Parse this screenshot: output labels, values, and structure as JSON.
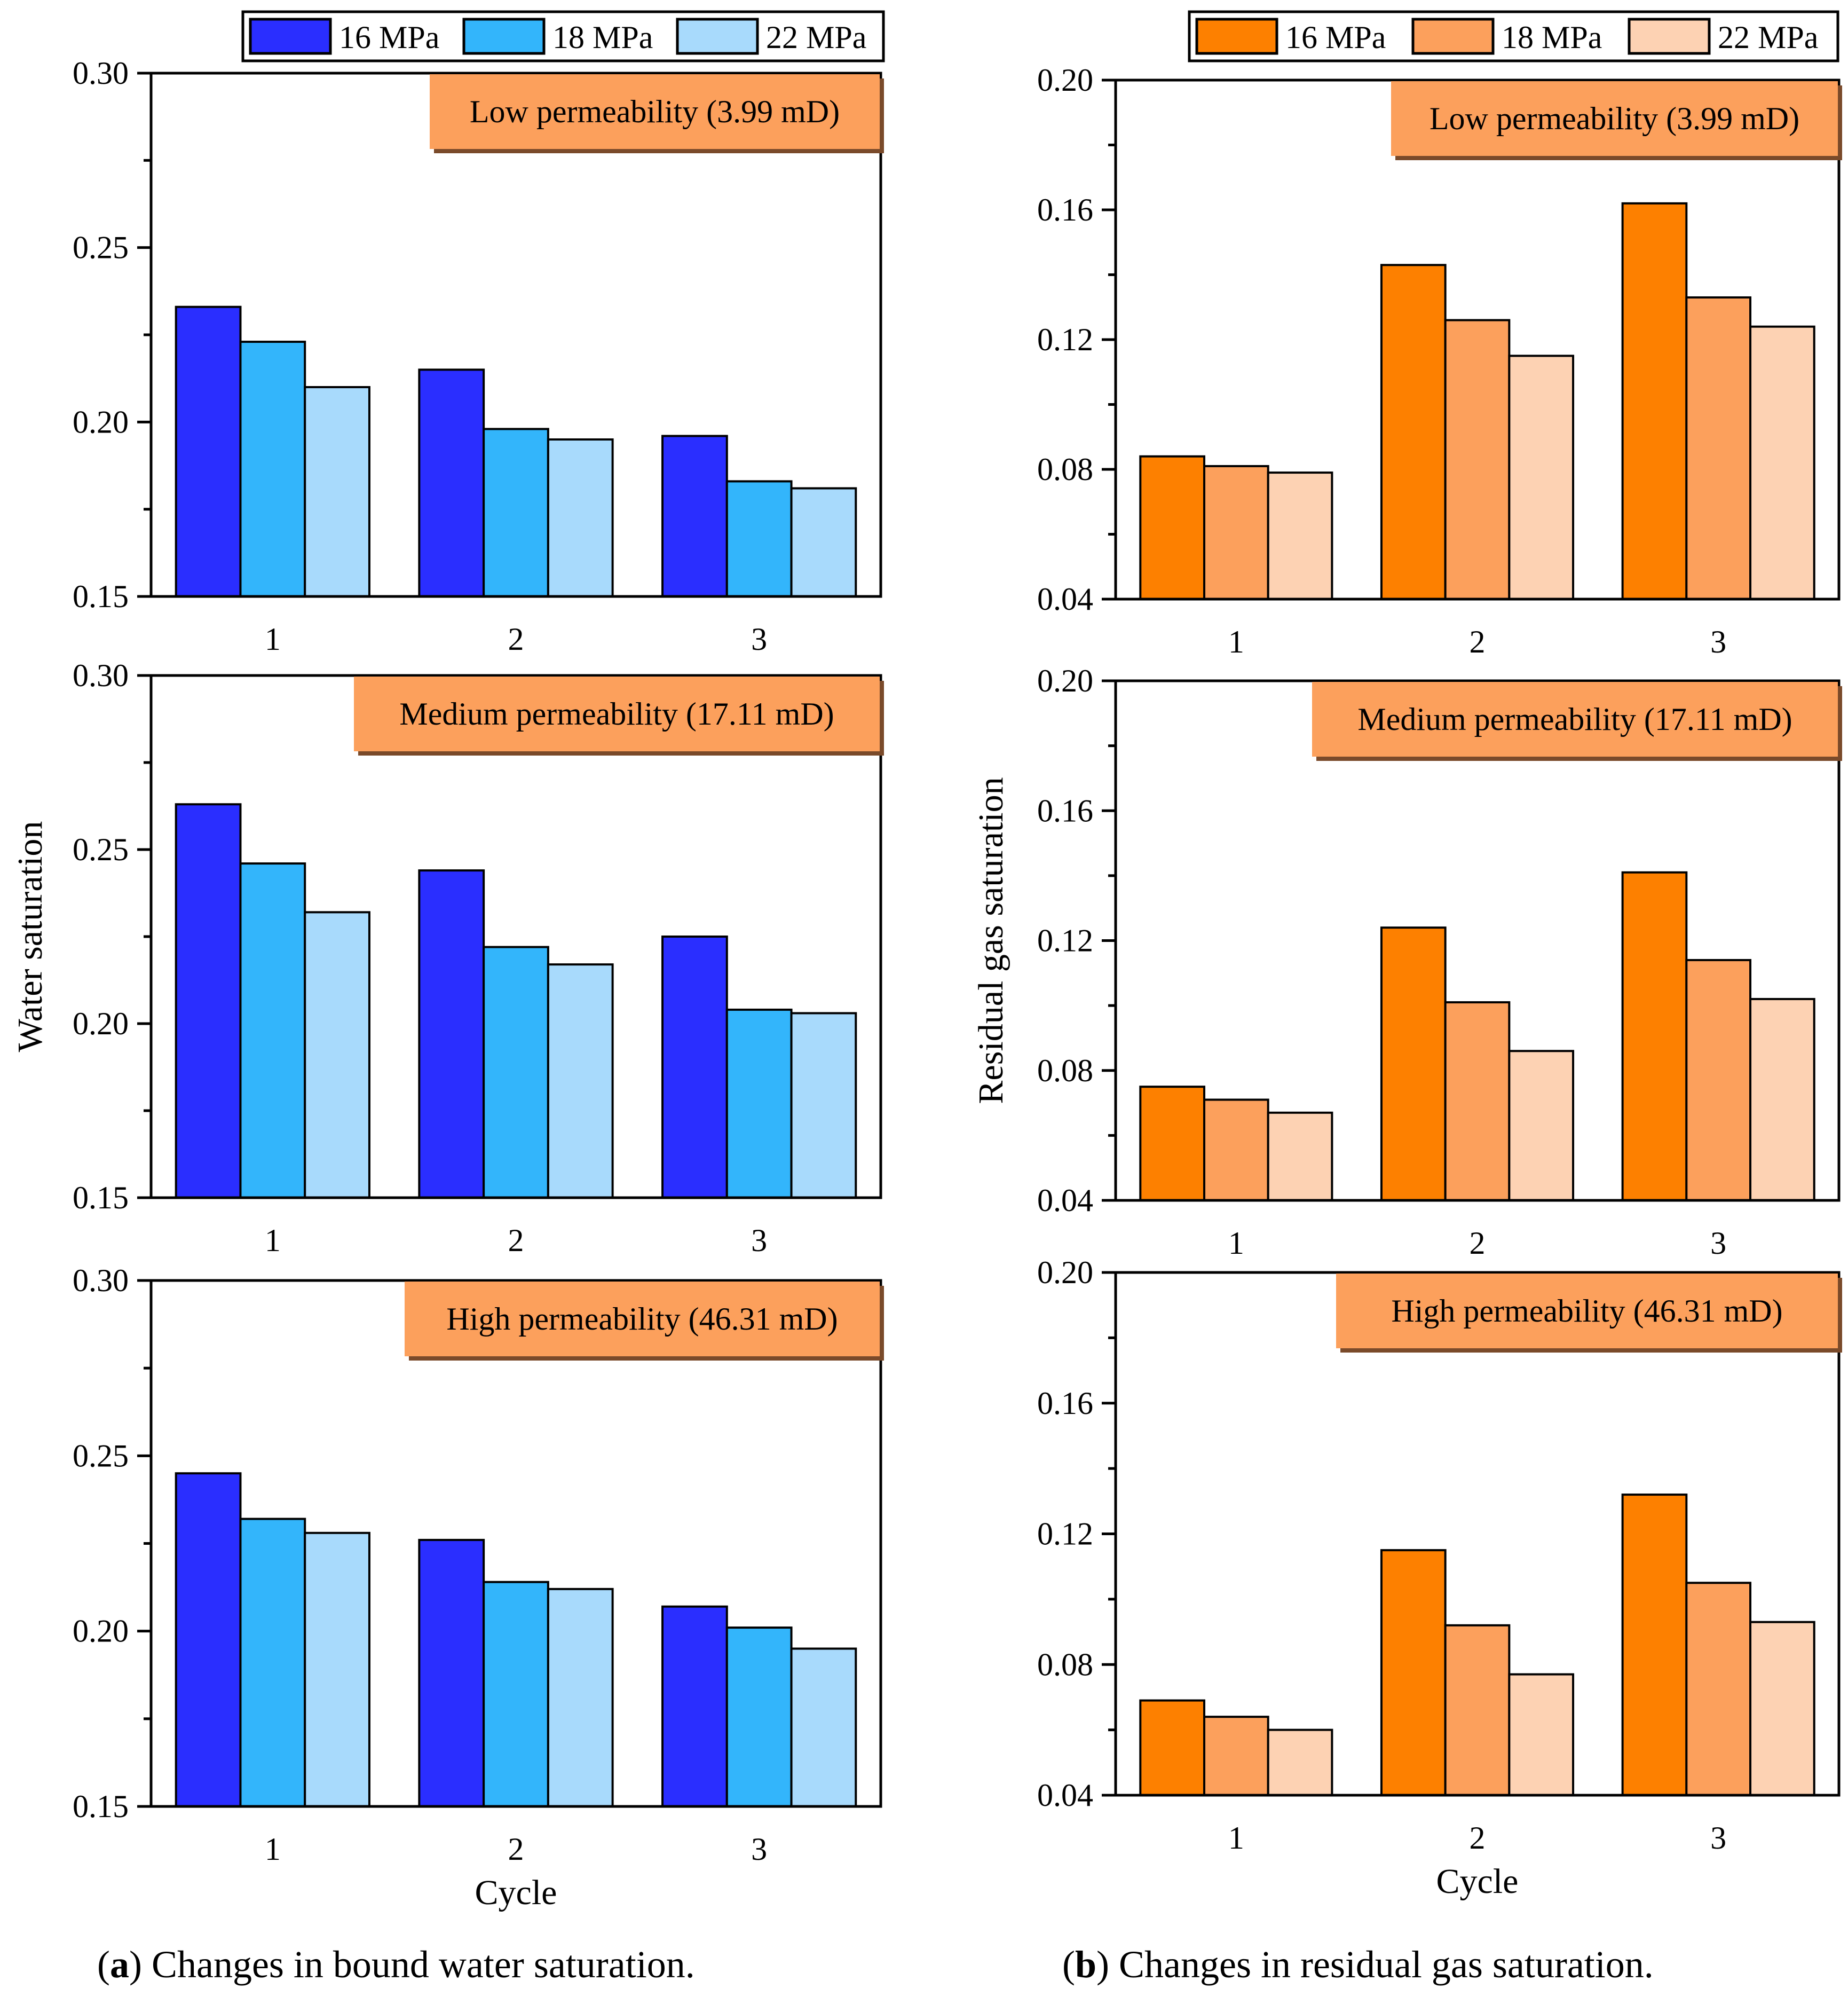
{
  "captions": {
    "a": {
      "letter": "a",
      "text": ") Changes in bound water saturation."
    },
    "b": {
      "letter": "b",
      "text": ") Changes in residual gas saturation."
    }
  },
  "colors": {
    "water": [
      "#2a2eff",
      "#33b5fb",
      "#a8dafc"
    ],
    "gas": [
      "#fd8000",
      "#fca05c",
      "#fdd2b3"
    ],
    "annotation_box": "#fca05c"
  },
  "chart_data": [
    {
      "id": "water-low",
      "type": "bar",
      "categories": [
        "1",
        "2",
        "3"
      ],
      "series": [
        {
          "name": "16 MPa",
          "values": [
            0.233,
            0.215,
            0.196
          ]
        },
        {
          "name": "18 MPa",
          "values": [
            0.223,
            0.198,
            0.183
          ]
        },
        {
          "name": "22 MPa",
          "values": [
            0.21,
            0.195,
            0.181
          ]
        }
      ],
      "ylim": [
        0.15,
        0.3
      ],
      "yticks": [
        "0.15",
        "0.20",
        "0.25",
        "0.30"
      ],
      "annotation": "Low permeability (3.99 mD)",
      "legend": [
        "16 MPa",
        "18 MPa",
        "22 MPa"
      ],
      "xlabel": "",
      "ylabel": ""
    },
    {
      "id": "water-medium",
      "type": "bar",
      "categories": [
        "1",
        "2",
        "3"
      ],
      "series": [
        {
          "name": "16 MPa",
          "values": [
            0.263,
            0.244,
            0.225
          ]
        },
        {
          "name": "18 MPa",
          "values": [
            0.246,
            0.222,
            0.204
          ]
        },
        {
          "name": "22 MPa",
          "values": [
            0.232,
            0.217,
            0.203
          ]
        }
      ],
      "ylim": [
        0.15,
        0.3
      ],
      "yticks": [
        "0.15",
        "0.20",
        "0.25",
        "0.30"
      ],
      "annotation": "Medium permeability (17.11 mD)",
      "xlabel": "",
      "ylabel": "Water saturation"
    },
    {
      "id": "water-high",
      "type": "bar",
      "categories": [
        "1",
        "2",
        "3"
      ],
      "series": [
        {
          "name": "16 MPa",
          "values": [
            0.245,
            0.226,
            0.207
          ]
        },
        {
          "name": "18 MPa",
          "values": [
            0.232,
            0.214,
            0.201
          ]
        },
        {
          "name": "22 MPa",
          "values": [
            0.228,
            0.212,
            0.195
          ]
        }
      ],
      "ylim": [
        0.15,
        0.3
      ],
      "yticks": [
        "0.15",
        "0.20",
        "0.25",
        "0.30"
      ],
      "annotation": "High permeability (46.31 mD)",
      "xlabel": "Cycle",
      "ylabel": ""
    },
    {
      "id": "gas-low",
      "type": "bar",
      "categories": [
        "1",
        "2",
        "3"
      ],
      "series": [
        {
          "name": "16 MPa",
          "values": [
            0.084,
            0.143,
            0.162
          ]
        },
        {
          "name": "18 MPa",
          "values": [
            0.081,
            0.126,
            0.133
          ]
        },
        {
          "name": "22 MPa",
          "values": [
            0.079,
            0.115,
            0.124
          ]
        }
      ],
      "ylim": [
        0.04,
        0.2
      ],
      "yticks": [
        "0.04",
        "0.08",
        "0.12",
        "0.16",
        "0.20"
      ],
      "annotation": "Low permeability (3.99 mD)",
      "legend": [
        "16 MPa",
        "18 MPa",
        "22 MPa"
      ],
      "xlabel": "",
      "ylabel": ""
    },
    {
      "id": "gas-medium",
      "type": "bar",
      "categories": [
        "1",
        "2",
        "3"
      ],
      "series": [
        {
          "name": "16 MPa",
          "values": [
            0.075,
            0.124,
            0.141
          ]
        },
        {
          "name": "18 MPa",
          "values": [
            0.071,
            0.101,
            0.114
          ]
        },
        {
          "name": "22 MPa",
          "values": [
            0.067,
            0.086,
            0.102
          ]
        }
      ],
      "ylim": [
        0.04,
        0.2
      ],
      "yticks": [
        "0.04",
        "0.08",
        "0.12",
        "0.16",
        "0.20"
      ],
      "annotation": "Medium permeability (17.11 mD)",
      "xlabel": "",
      "ylabel": "Residual gas saturation"
    },
    {
      "id": "gas-high",
      "type": "bar",
      "categories": [
        "1",
        "2",
        "3"
      ],
      "series": [
        {
          "name": "16 MPa",
          "values": [
            0.069,
            0.115,
            0.132
          ]
        },
        {
          "name": "18 MPa",
          "values": [
            0.064,
            0.092,
            0.105
          ]
        },
        {
          "name": "22 MPa",
          "values": [
            0.06,
            0.077,
            0.093
          ]
        }
      ],
      "ylim": [
        0.04,
        0.2
      ],
      "yticks": [
        "0.04",
        "0.08",
        "0.12",
        "0.16",
        "0.20"
      ],
      "annotation": "High permeability (46.31 mD)",
      "xlabel": "Cycle",
      "ylabel": ""
    }
  ]
}
